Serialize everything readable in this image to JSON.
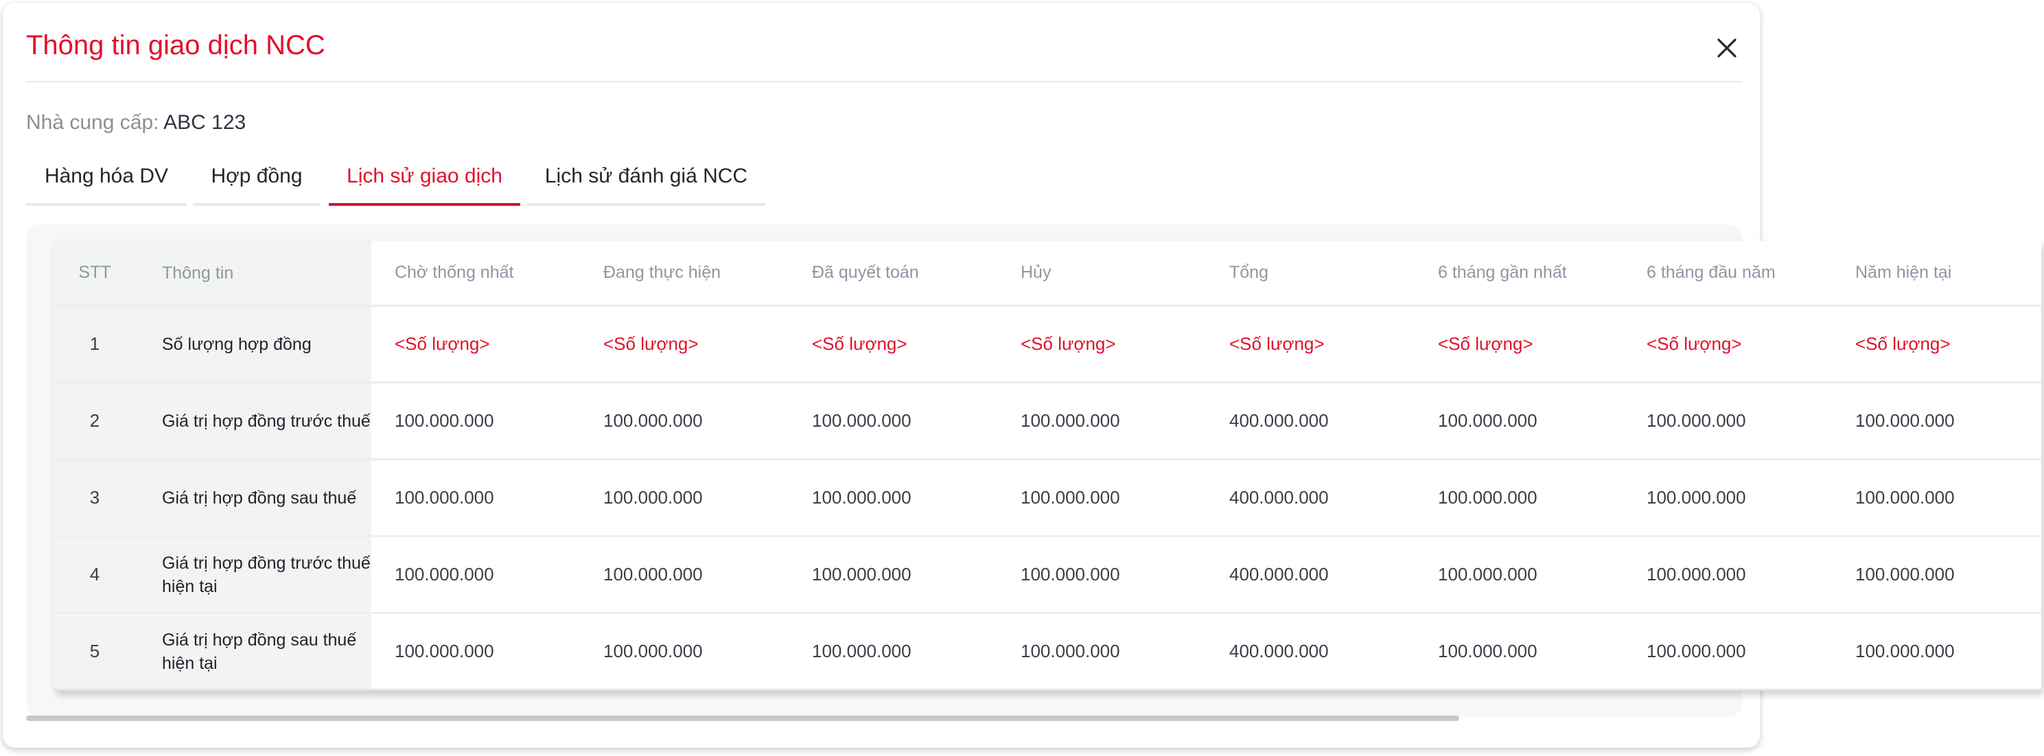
{
  "dialog": {
    "title": "Thông tin giao dịch NCC",
    "supplier_label": "Nhà cung cấp:",
    "supplier_value": "ABC 123"
  },
  "tabs": [
    {
      "label": "Hàng hóa DV"
    },
    {
      "label": "Hợp đồng"
    },
    {
      "label": "Lịch sử giao dịch",
      "active": true
    },
    {
      "label": "Lịch sử đánh giá NCC"
    }
  ],
  "table": {
    "headers": [
      "STT",
      "Thông tin",
      "Chờ thống nhất",
      "Đang thực hiện",
      "Đã quyết toán",
      "Hủy",
      "Tổng",
      "6 tháng gần nhất",
      "6 tháng đầu năm",
      "Năm hiện tại"
    ],
    "rows": [
      {
        "stt": "1",
        "info": "Số lượng hợp đồng",
        "values": [
          "<Số lượng>",
          "<Số lượng>",
          "<Số lượng>",
          "<Số lượng>",
          "<Số lượng>",
          "<Số lượng>",
          "<Số lượng>",
          "<Số lượng>"
        ],
        "placeholder": true
      },
      {
        "stt": "2",
        "info": "Giá trị hợp đồng trước thuế",
        "values": [
          "100.000.000",
          "100.000.000",
          "100.000.000",
          "100.000.000",
          "400.000.000",
          "100.000.000",
          "100.000.000",
          "100.000.000"
        ]
      },
      {
        "stt": "3",
        "info": "Giá trị hợp đồng sau thuế",
        "values": [
          "100.000.000",
          "100.000.000",
          "100.000.000",
          "100.000.000",
          "400.000.000",
          "100.000.000",
          "100.000.000",
          "100.000.000"
        ]
      },
      {
        "stt": "4",
        "info": "Giá trị hợp đồng trước thuế hiện tại",
        "values": [
          "100.000.000",
          "100.000.000",
          "100.000.000",
          "100.000.000",
          "400.000.000",
          "100.000.000",
          "100.000.000",
          "100.000.000"
        ]
      },
      {
        "stt": "5",
        "info": "Giá trị hợp đồng sau thuế hiện tại",
        "values": [
          "100.000.000",
          "100.000.000",
          "100.000.000",
          "100.000.000",
          "400.000.000",
          "100.000.000",
          "100.000.000",
          "100.000.000"
        ]
      }
    ]
  },
  "colors": {
    "accent": "#e3102a"
  }
}
